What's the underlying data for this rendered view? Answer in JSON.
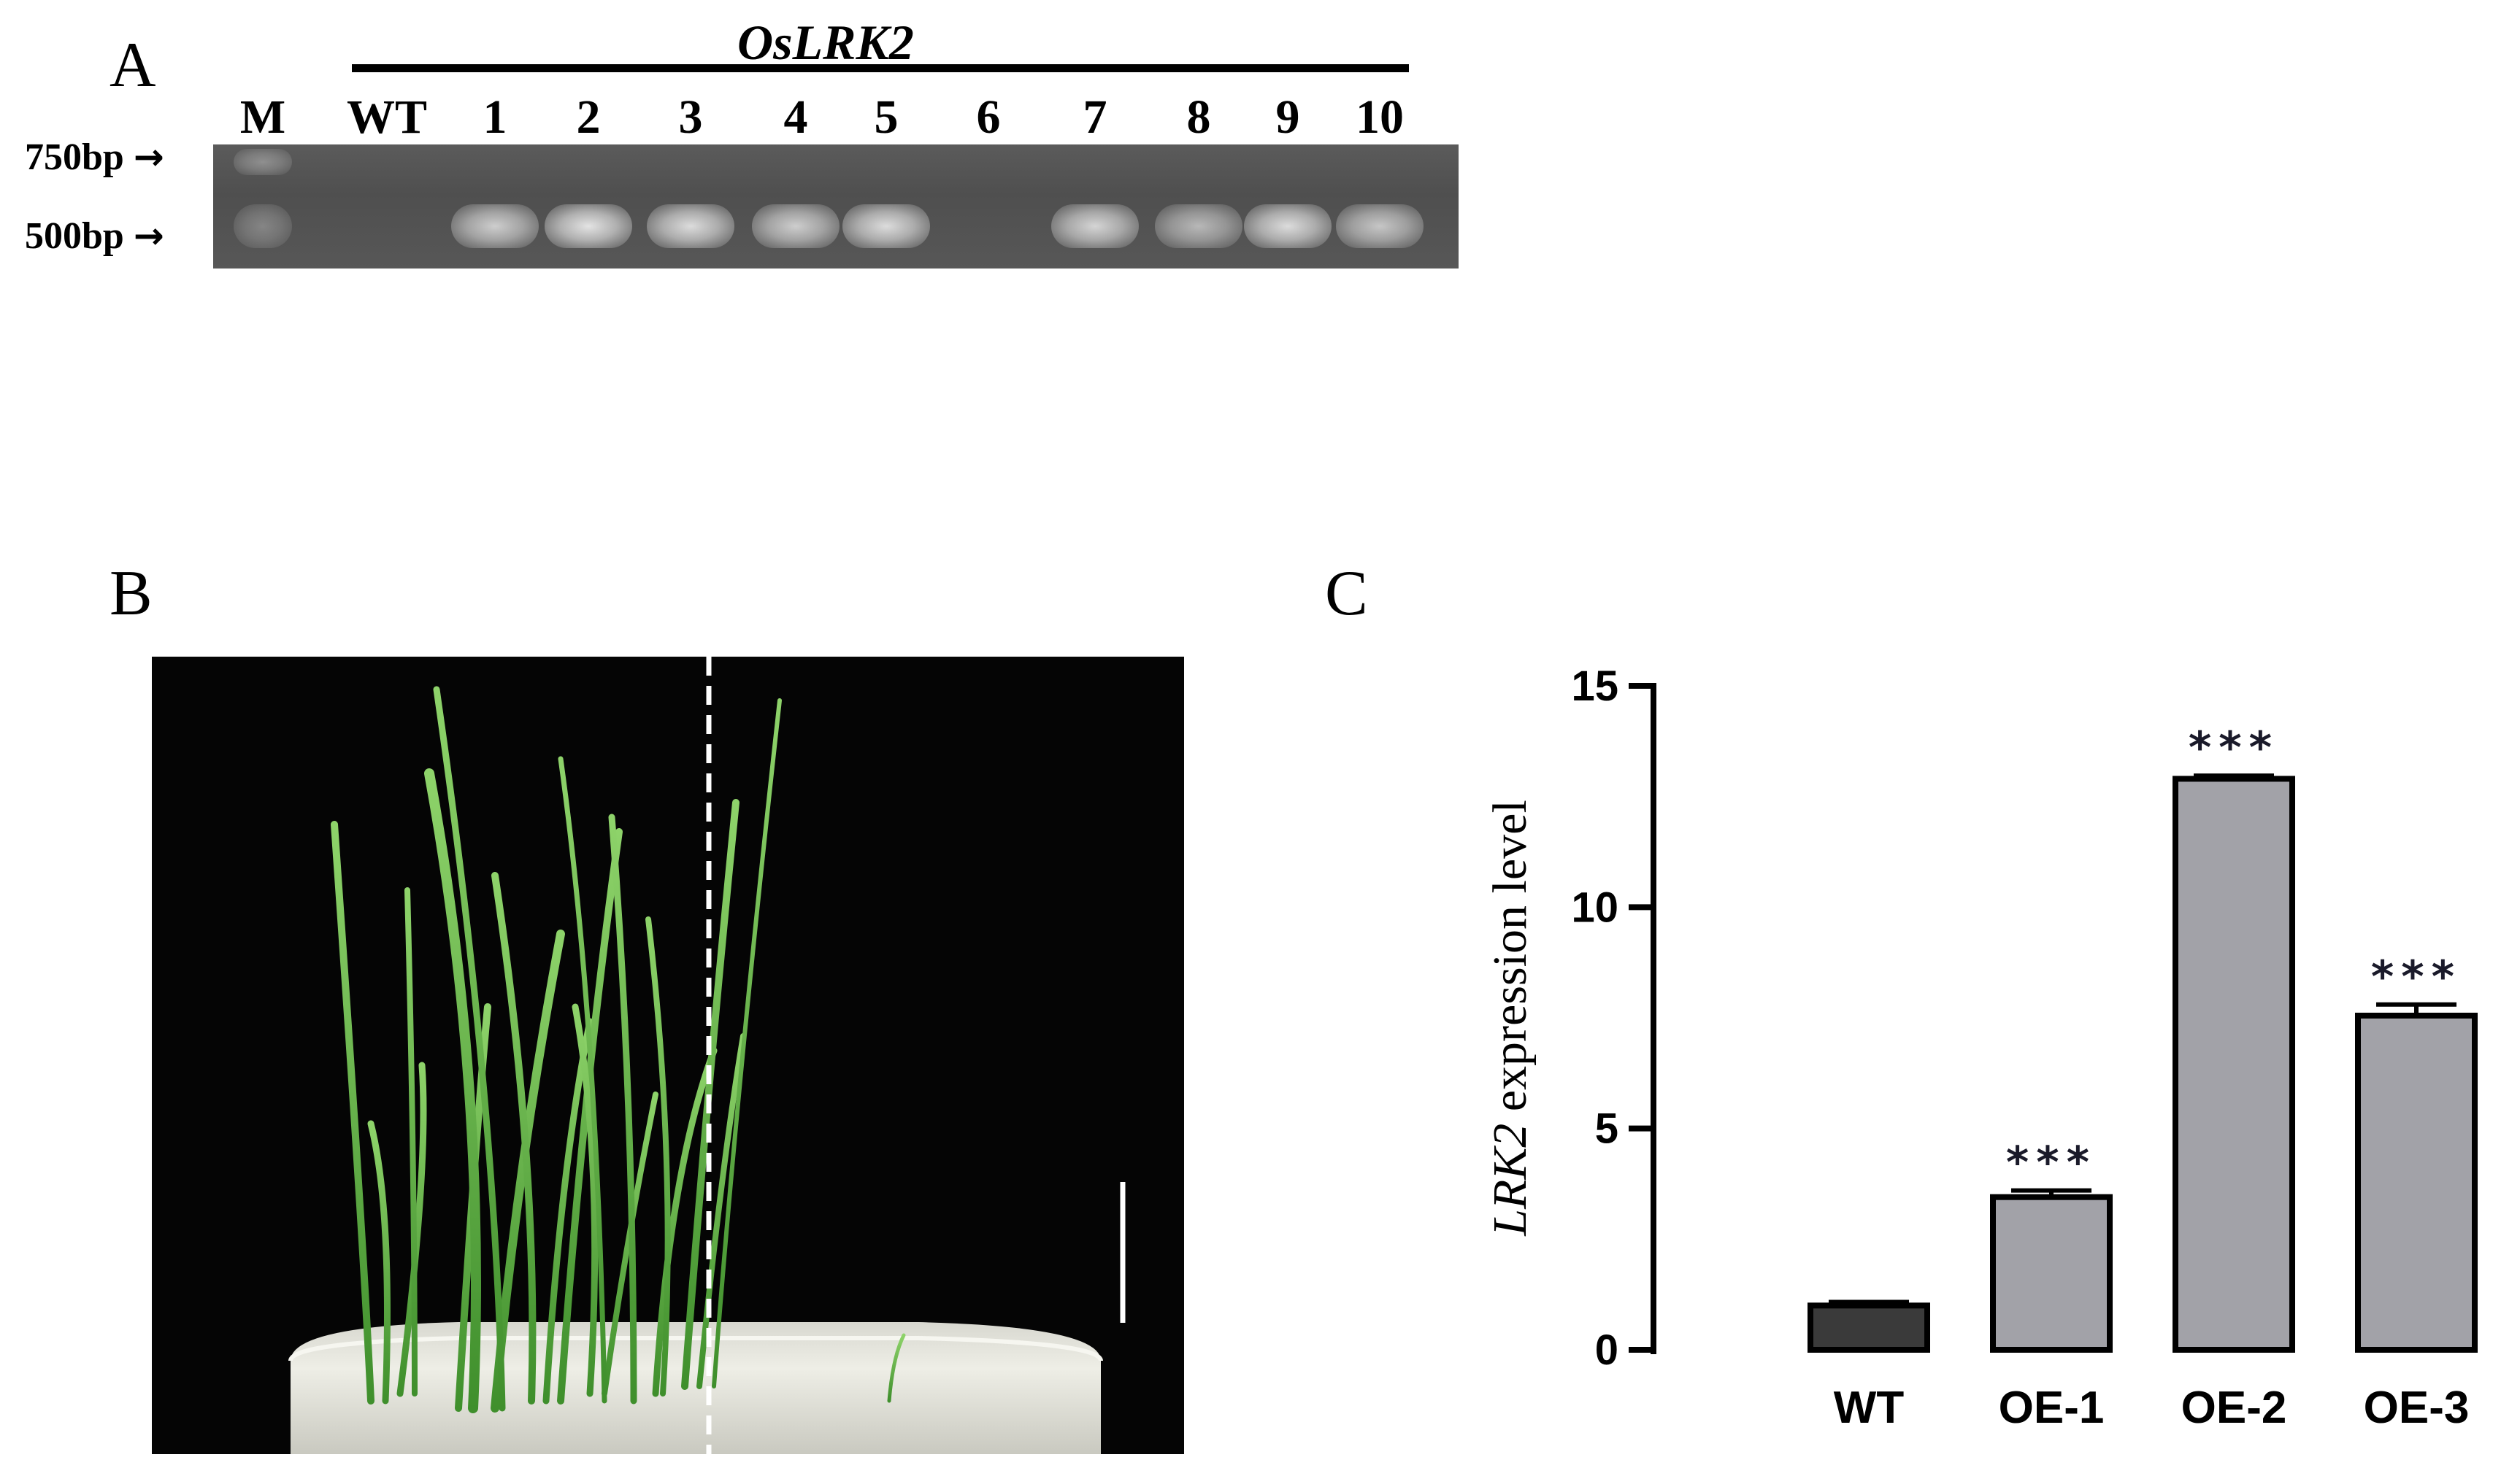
{
  "panel_a": {
    "letter": "A",
    "gene_label": "OsLRK2",
    "lanes": [
      "M",
      "WT",
      "1",
      "2",
      "3",
      "4",
      "5",
      "6",
      "7",
      "8",
      "9",
      "10"
    ],
    "band_intensity": [
      0.35,
      0.0,
      0.85,
      1.0,
      0.95,
      0.85,
      0.95,
      0.0,
      0.9,
      0.7,
      0.95,
      0.8
    ],
    "markers": [
      {
        "label": "750bp",
        "arrow": "→"
      },
      {
        "label": "500bp",
        "arrow": "→"
      }
    ]
  },
  "panel_b": {
    "letter": "B",
    "description_icon": "rice-seedlings-photo"
  },
  "panel_c": {
    "letter": "C",
    "chart_data": {
      "type": "bar",
      "categories": [
        "WT",
        "OE-1",
        "OE-2",
        "OE-3"
      ],
      "values": [
        1.0,
        3.45,
        12.9,
        7.55
      ],
      "errors": [
        0.08,
        0.15,
        0.07,
        0.25
      ],
      "significance": [
        "",
        "***",
        "***",
        "***"
      ],
      "ylabel_italic": "LRK2",
      "ylabel_rest": " expression level",
      "ylim": [
        0,
        15
      ],
      "yticks": [
        "0",
        "5",
        "10",
        "15"
      ],
      "colors": {
        "WT": "#3a3a3a",
        "OE": "#a2a2a8"
      }
    }
  }
}
